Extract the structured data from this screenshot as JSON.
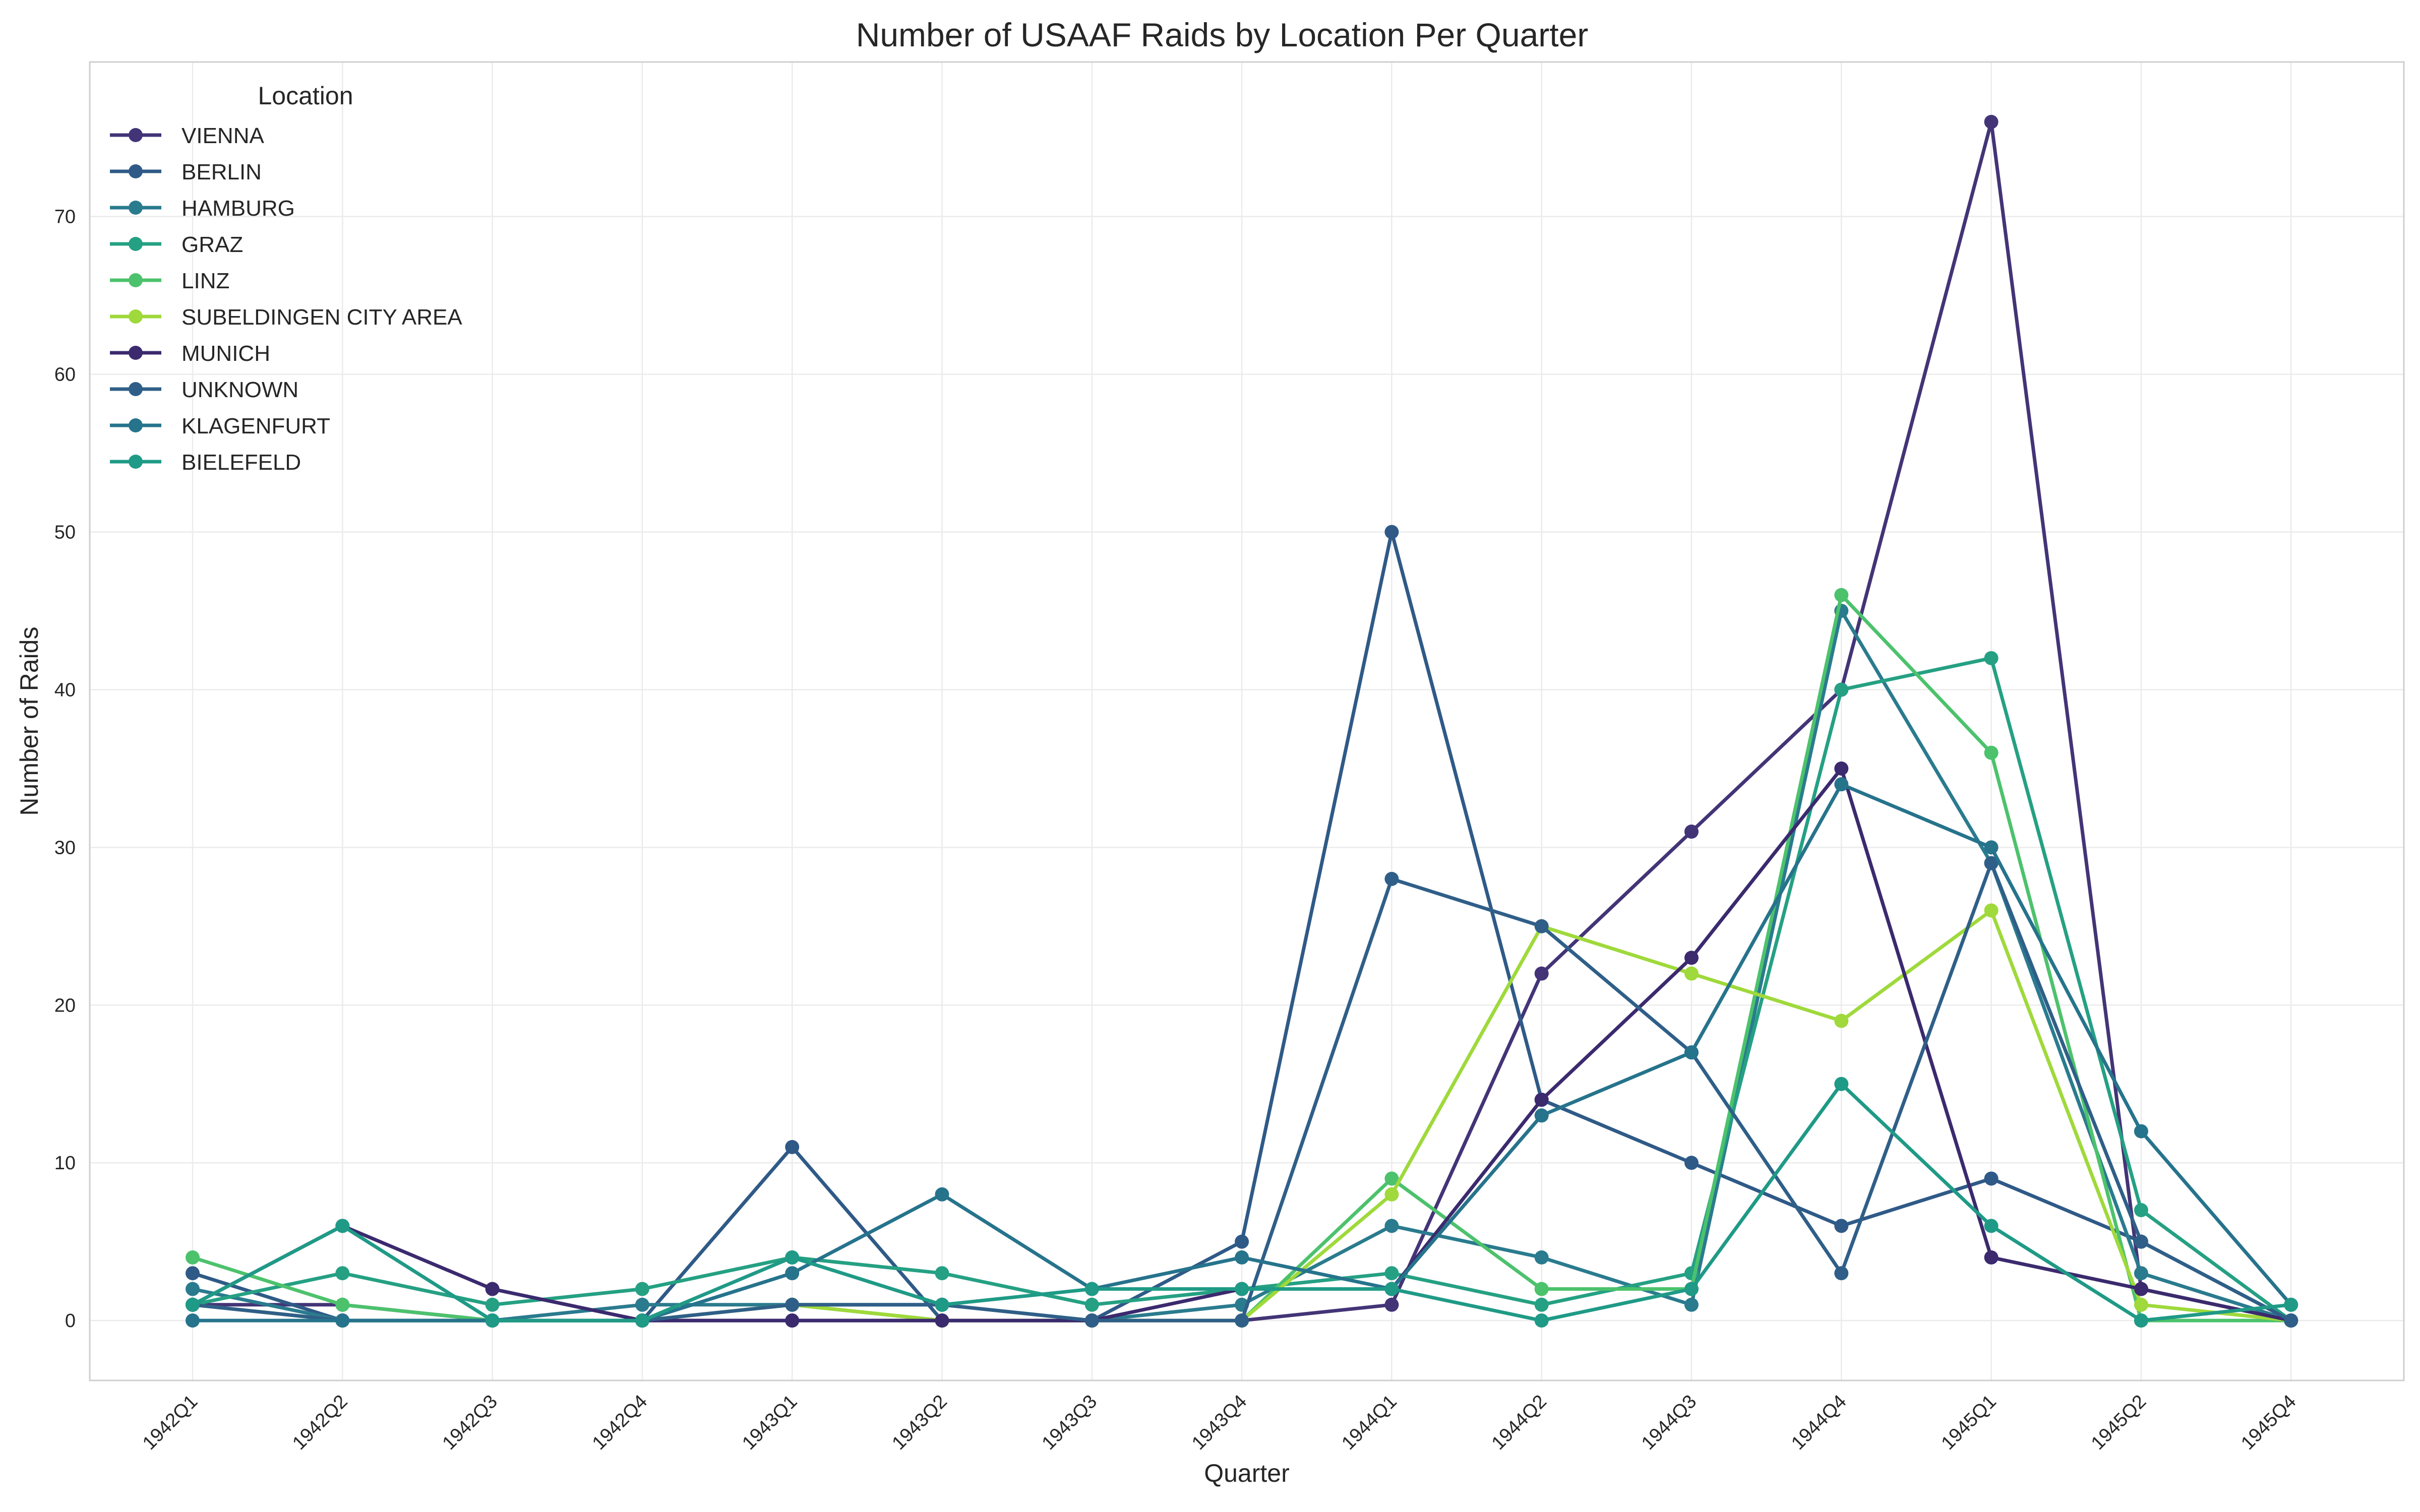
{
  "chart_data": {
    "type": "line",
    "title": "Number of USAAF Raids by Location Per Quarter",
    "xlabel": "Quarter",
    "ylabel": "Number of Raids",
    "ylim": [
      -3.8,
      79.8
    ],
    "yticks": [
      0,
      10,
      20,
      30,
      40,
      50,
      60,
      70
    ],
    "grid": true,
    "legend_title": "Location",
    "legend_position": "top-left",
    "categories": [
      "1942Q1",
      "1942Q2",
      "1942Q3",
      "1942Q4",
      "1943Q1",
      "1943Q2",
      "1943Q3",
      "1943Q4",
      "1944Q1",
      "1944Q2",
      "1944Q3",
      "1944Q4",
      "1945Q1",
      "1945Q2",
      "1945Q4"
    ],
    "series": [
      {
        "name": "VIENNA",
        "color": "#433477",
        "values": [
          1,
          1,
          0,
          0,
          0,
          0,
          0,
          0,
          1,
          22,
          31,
          40,
          76,
          2,
          0
        ]
      },
      {
        "name": "BERLIN",
        "color": "#2f5a87",
        "values": [
          3,
          0,
          0,
          0,
          11,
          0,
          0,
          5,
          50,
          14,
          10,
          6,
          9,
          5,
          0
        ]
      },
      {
        "name": "HAMBURG",
        "color": "#2a7b8e",
        "values": [
          2,
          0,
          0,
          1,
          1,
          1,
          0,
          1,
          6,
          4,
          1,
          45,
          29,
          3,
          0
        ]
      },
      {
        "name": "GRAZ",
        "color": "#25a083",
        "values": [
          1,
          3,
          1,
          2,
          4,
          3,
          1,
          2,
          3,
          1,
          3,
          40,
          42,
          7,
          0
        ]
      },
      {
        "name": "LINZ",
        "color": "#4cc26c",
        "values": [
          4,
          1,
          0,
          0,
          1,
          0,
          0,
          0,
          9,
          2,
          2,
          46,
          36,
          0,
          0
        ]
      },
      {
        "name": "SUBELDINGEN CITY AREA",
        "color": "#9fd93b",
        "values": [
          1,
          0,
          0,
          0,
          1,
          0,
          0,
          0,
          8,
          25,
          22,
          19,
          26,
          1,
          0
        ]
      },
      {
        "name": "MUNICH",
        "color": "#3b2a6e",
        "values": [
          1,
          6,
          2,
          0,
          0,
          0,
          0,
          2,
          2,
          14,
          23,
          35,
          4,
          2,
          0
        ]
      },
      {
        "name": "UNKNOWN",
        "color": "#2f5f88",
        "values": [
          1,
          0,
          0,
          0,
          1,
          1,
          0,
          0,
          28,
          25,
          17,
          3,
          29,
          5,
          0
        ]
      },
      {
        "name": "KLAGENFURT",
        "color": "#26738c",
        "values": [
          0,
          0,
          0,
          0,
          3,
          8,
          2,
          4,
          2,
          13,
          17,
          34,
          30,
          12,
          1
        ]
      },
      {
        "name": "BIELEFELD",
        "color": "#1f9a86",
        "values": [
          1,
          6,
          0,
          0,
          4,
          1,
          2,
          2,
          2,
          0,
          2,
          15,
          6,
          0,
          1
        ]
      }
    ]
  }
}
